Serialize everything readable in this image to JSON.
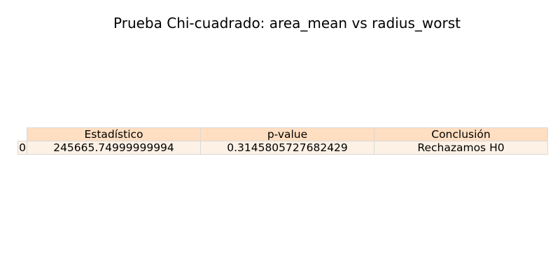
{
  "chart_data": {
    "type": "table",
    "title": "Prueba Chi-cuadrado: area_mean vs radius_worst",
    "columns": [
      "Estadístico",
      "p-value",
      "Conclusión"
    ],
    "rows": [
      {
        "index": "0",
        "cells": [
          "245665.74999999994",
          "0.3145805727682429",
          "Rechazamos H0"
        ]
      }
    ],
    "colors": {
      "header_bg": "#ffdec1",
      "cell_bg": "#fdf1e5",
      "border": "#d9d9d9"
    }
  }
}
